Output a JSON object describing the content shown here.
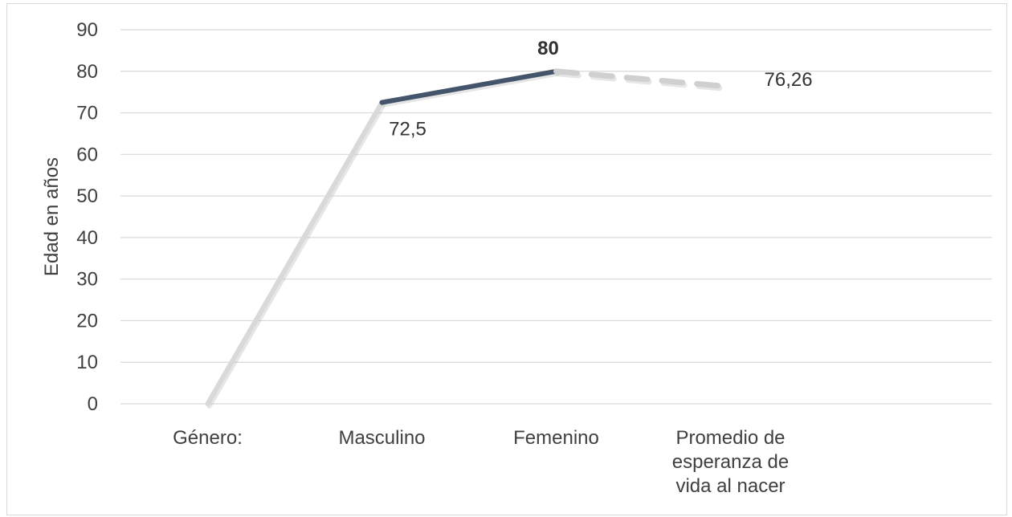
{
  "chart_data": {
    "type": "line",
    "title": "",
    "xlabel": "",
    "ylabel": "Edad en años",
    "ylim": [
      0,
      90
    ],
    "yticks": [
      0,
      10,
      20,
      30,
      40,
      50,
      60,
      70,
      80,
      90
    ],
    "categories": [
      "Género:",
      "Masculino",
      "Femenino",
      "Promedio de esperanza de vida al nacer"
    ],
    "category_lines": [
      [
        "Género:"
      ],
      [
        "Masculino"
      ],
      [
        "Femenino"
      ],
      [
        "Promedio de",
        "esperanza de",
        "vida al nacer"
      ]
    ],
    "values": [
      0,
      72.5,
      80,
      76.26
    ],
    "data_labels": [
      "",
      "72,5",
      "80",
      "76,26"
    ],
    "data_label_bold": [
      false,
      false,
      true,
      false
    ],
    "grid": true,
    "legend": "none",
    "colors": {
      "segment_light": "#d9d9d9",
      "segment_dark": "#44546a",
      "segment_dashed": "#d0d0d0",
      "gridline": "#d9d9d9",
      "text": "#404040"
    }
  }
}
